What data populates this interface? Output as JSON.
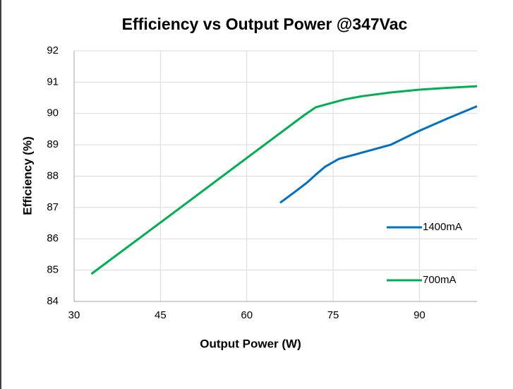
{
  "chart_data": {
    "type": "line",
    "title": "Efficiency vs Output Power @347Vac",
    "xlabel": "Output Power (W)",
    "ylabel": "Efficiency (%)",
    "xlim": [
      30,
      100
    ],
    "xticks": [
      30,
      45,
      60,
      75,
      90
    ],
    "ylim": [
      84,
      92
    ],
    "yticks": [
      84,
      85,
      86,
      87,
      88,
      89,
      90,
      91,
      92
    ],
    "grid": true,
    "legend": "right",
    "series": [
      {
        "name": "1400mA",
        "color": "#0070c0",
        "x": [
          65.8,
          68,
          70.5,
          72,
          73.6,
          76,
          80,
          85,
          90,
          95,
          100
        ],
        "values": [
          87.15,
          87.45,
          87.8,
          88.05,
          88.3,
          88.55,
          88.75,
          89.0,
          89.45,
          89.85,
          90.23
        ]
      },
      {
        "name": "700mA",
        "color": "#00b050",
        "x": [
          33,
          45,
          60,
          70,
          72,
          74,
          77,
          80,
          85,
          90,
          95,
          100
        ],
        "values": [
          84.88,
          86.52,
          88.58,
          89.95,
          90.2,
          90.3,
          90.45,
          90.55,
          90.67,
          90.76,
          90.82,
          90.87
        ]
      }
    ]
  }
}
